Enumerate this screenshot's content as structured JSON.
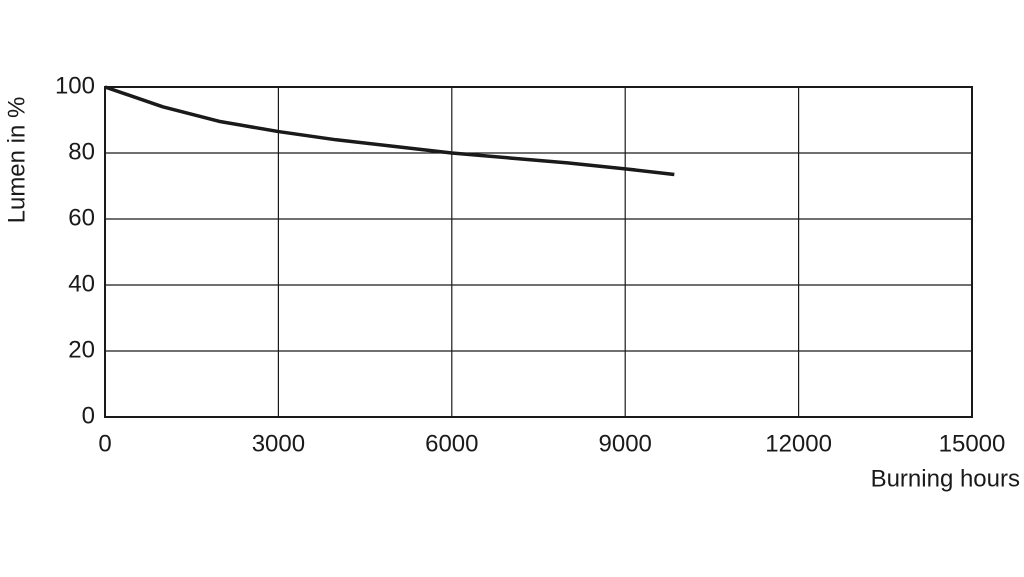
{
  "chart_data": {
    "type": "line",
    "x_label": "Burning hours",
    "y_label": "Lumen in %",
    "x": [
      0,
      1000,
      2000,
      3000,
      4000,
      5000,
      6000,
      7000,
      8000,
      9000,
      9850
    ],
    "series": [
      {
        "name": "Lumen",
        "color": "#1a1a1a",
        "values": [
          100,
          94,
          89.5,
          86.5,
          84,
          82,
          80,
          78.5,
          77,
          75.2,
          73.5
        ]
      }
    ],
    "xlim": [
      0,
      15000
    ],
    "xticks": [
      0,
      3000,
      6000,
      9000,
      12000,
      15000
    ],
    "ylim": [
      0,
      100
    ],
    "yticks": [
      0,
      20,
      40,
      60,
      80,
      100
    ],
    "grid": true
  }
}
